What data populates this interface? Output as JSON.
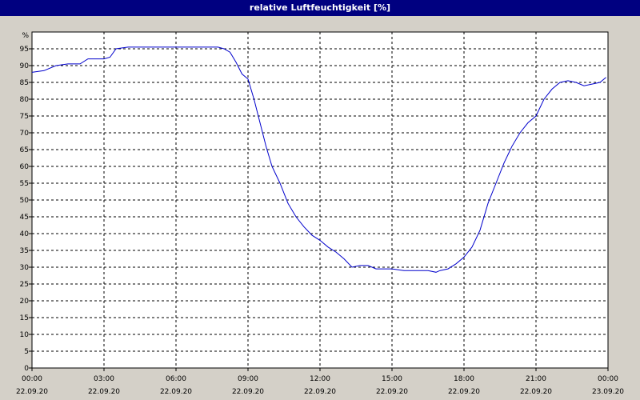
{
  "window": {
    "title": "relative Luftfeuchtigkeit [%]"
  },
  "colors": {
    "title_bar": "#000080",
    "plot_background": "#ffffff",
    "grid": "#000000",
    "line": "#0000cc"
  },
  "chart_data": {
    "type": "line",
    "title": "relative Luftfeuchtigkeit [%]",
    "ylabel": "%",
    "ylim": [
      0,
      100
    ],
    "yticks": [
      0,
      5,
      10,
      15,
      20,
      25,
      30,
      35,
      40,
      45,
      50,
      55,
      60,
      65,
      70,
      75,
      80,
      85,
      90,
      95
    ],
    "xlim": [
      "22.09.20 00:00",
      "23.09.20 00:00"
    ],
    "xticks": [
      {
        "time": "00:00",
        "date": "22.09.20",
        "hour": 0
      },
      {
        "time": "03:00",
        "date": "22.09.20",
        "hour": 3
      },
      {
        "time": "06:00",
        "date": "22.09.20",
        "hour": 6
      },
      {
        "time": "09:00",
        "date": "22.09.20",
        "hour": 9
      },
      {
        "time": "12:00",
        "date": "22.09.20",
        "hour": 12
      },
      {
        "time": "15:00",
        "date": "22.09.20",
        "hour": 15
      },
      {
        "time": "18:00",
        "date": "22.09.20",
        "hour": 18
      },
      {
        "time": "21:00",
        "date": "22.09.20",
        "hour": 21
      },
      {
        "time": "00:00",
        "date": "23.09.20",
        "hour": 24
      }
    ],
    "grid": true,
    "series": [
      {
        "x": [
          "00:00",
          "00:30",
          "01:00",
          "01:30",
          "02:00",
          "02:20",
          "03:00",
          "03:15",
          "03:30",
          "04:00",
          "05:00",
          "06:00",
          "07:00",
          "07:45",
          "08:00",
          "08:15",
          "08:30",
          "08:45",
          "09:00",
          "09:15",
          "09:30",
          "09:45",
          "10:00",
          "10:20",
          "10:40",
          "11:00",
          "11:20",
          "11:40",
          "12:00",
          "12:20",
          "12:40",
          "13:00",
          "13:20",
          "13:40",
          "14:00",
          "14:20",
          "14:40",
          "15:00",
          "15:30",
          "16:00",
          "16:30",
          "16:50",
          "17:00",
          "17:20",
          "17:40",
          "18:00",
          "18:20",
          "18:40",
          "19:00",
          "19:20",
          "19:40",
          "20:00",
          "20:20",
          "20:40",
          "21:00",
          "21:20",
          "21:40",
          "22:00",
          "22:20",
          "22:40",
          "23:00",
          "23:20",
          "23:40",
          "23:55"
        ],
        "values": [
          88,
          88.5,
          90,
          90.5,
          90.5,
          92,
          92,
          92.5,
          95,
          95.5,
          95.5,
          95.5,
          95.5,
          95.5,
          95,
          94,
          91,
          87.5,
          86,
          80,
          73,
          66,
          60,
          55,
          49,
          45,
          42,
          39.5,
          38,
          36,
          34.5,
          32.5,
          30,
          30.5,
          30.5,
          29.5,
          29.5,
          29.5,
          29,
          29,
          29,
          28.5,
          29,
          29.5,
          31,
          33,
          36,
          41,
          49,
          55,
          61,
          66,
          70,
          73,
          75,
          80,
          83,
          85,
          85.5,
          85,
          84,
          84.5,
          85,
          86.5
        ]
      }
    ]
  }
}
